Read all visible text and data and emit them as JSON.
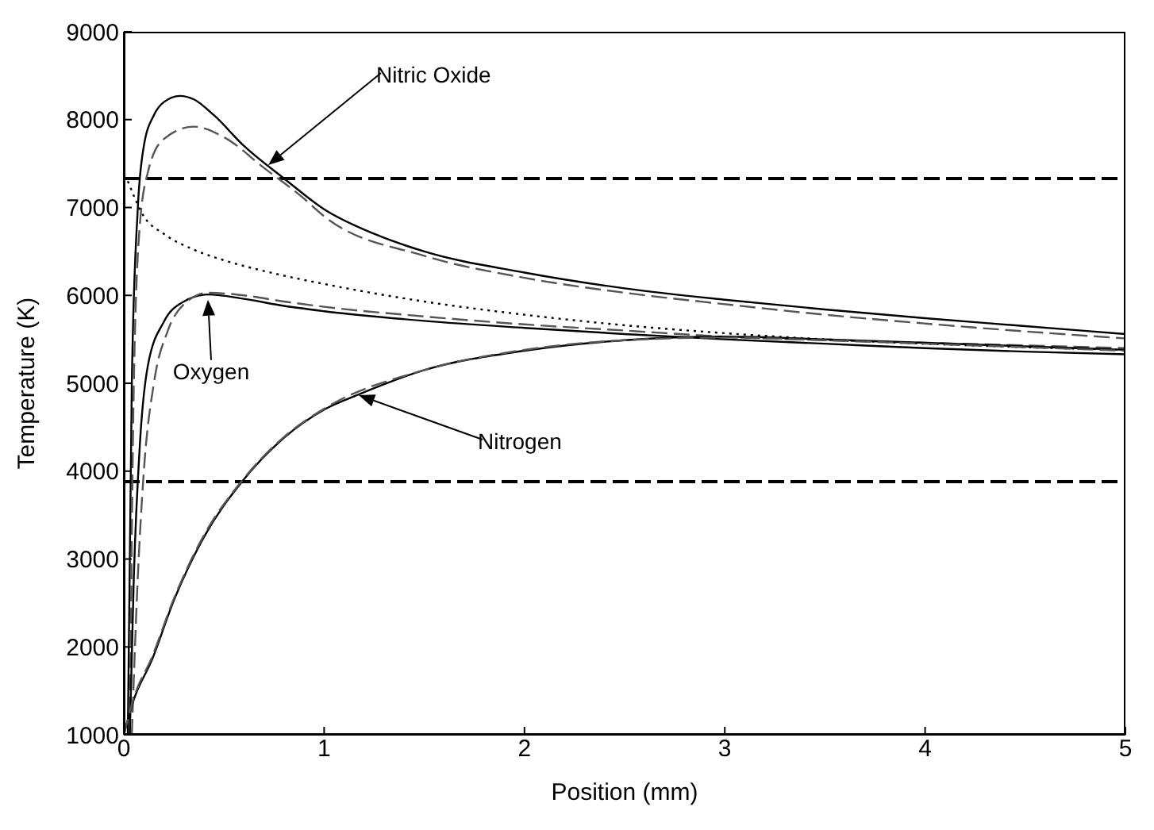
{
  "chart_data": {
    "type": "line",
    "xlabel": "Position (mm)",
    "ylabel": "Temperature (K)",
    "xlim": [
      0,
      5
    ],
    "xticks": [
      0,
      1,
      2,
      3,
      4,
      5
    ],
    "ylim": [
      1000,
      9000
    ],
    "yticks": [
      1000,
      2000,
      3000,
      4000,
      5000,
      6000,
      7000,
      8000,
      9000
    ],
    "grid": false,
    "legend": false,
    "marker": "none",
    "series": [
      {
        "color": "#000000",
        "line_style": "solid",
        "x": [
          0.02,
          0.04,
          0.07,
          0.1,
          0.15,
          0.2,
          0.28,
          0.35,
          0.45,
          0.6,
          0.8,
          1.0,
          1.25,
          1.5,
          2.0,
          2.5,
          3.0,
          3.5,
          4.0,
          4.5,
          5.0
        ],
        "values": [
          1000,
          5000,
          7000,
          7700,
          8050,
          8200,
          8270,
          8230,
          8050,
          7700,
          7330,
          6980,
          6700,
          6500,
          6260,
          6080,
          5950,
          5840,
          5740,
          5650,
          5560
        ]
      },
      {
        "color": "#555555",
        "line_style": "dashed",
        "x": [
          0.03,
          0.05,
          0.08,
          0.12,
          0.2,
          0.35,
          0.5,
          0.7,
          0.9,
          1.0,
          1.5,
          2.0,
          2.5,
          3.0,
          3.5,
          4.0,
          4.5,
          5.0
        ],
        "values": [
          1000,
          5000,
          6800,
          7400,
          7780,
          7920,
          7800,
          7450,
          7100,
          6900,
          6450,
          6200,
          6030,
          5900,
          5780,
          5680,
          5590,
          5510
        ]
      },
      {
        "color": "#000000",
        "line_style": "dotted",
        "x": [
          0.02,
          0.1,
          0.2,
          0.35,
          0.5,
          0.75,
          1.0,
          1.5,
          2.0,
          2.5,
          3.0,
          3.5,
          4.0,
          4.5,
          5.0
        ],
        "values": [
          7300,
          6900,
          6700,
          6520,
          6400,
          6250,
          6130,
          5930,
          5780,
          5660,
          5570,
          5500,
          5450,
          5410,
          5380
        ]
      },
      {
        "color": "#000000",
        "line_style": "solid",
        "x": [
          0.03,
          0.05,
          0.08,
          0.12,
          0.2,
          0.3,
          0.42,
          0.6,
          0.8,
          1.0,
          1.5,
          2.0,
          2.5,
          3.0,
          3.5,
          4.0,
          4.5,
          5.0
        ],
        "values": [
          1000,
          2800,
          4300,
          5200,
          5700,
          5930,
          6010,
          5960,
          5880,
          5820,
          5710,
          5630,
          5560,
          5500,
          5450,
          5400,
          5360,
          5330
        ]
      },
      {
        "color": "#555555",
        "line_style": "dashed",
        "x": [
          0.04,
          0.07,
          0.1,
          0.15,
          0.22,
          0.3,
          0.42,
          0.6,
          0.8,
          1.0,
          1.5,
          2.0,
          2.5,
          3.0,
          3.5,
          4.0,
          4.5,
          5.0
        ],
        "values": [
          1000,
          2800,
          4000,
          5000,
          5600,
          5900,
          6030,
          6000,
          5930,
          5870,
          5760,
          5670,
          5600,
          5530,
          5490,
          5460,
          5430,
          5400
        ]
      },
      {
        "color": "#000000",
        "line_style": "solid",
        "x": [
          0.0,
          0.05,
          0.14,
          0.25,
          0.4,
          0.59,
          0.8,
          1.0,
          1.17,
          1.5,
          2.0,
          2.5,
          3.0,
          3.5,
          4.0,
          4.5,
          5.0
        ],
        "values": [
          1000,
          1400,
          1850,
          2530,
          3250,
          3880,
          4380,
          4700,
          4870,
          5150,
          5370,
          5490,
          5530,
          5500,
          5460,
          5420,
          5380
        ]
      },
      {
        "color": "#555555",
        "line_style": "dashed",
        "x": [
          0.0,
          0.05,
          0.14,
          0.25,
          0.4,
          0.59,
          0.8,
          1.0,
          1.5,
          2.0,
          2.5,
          3.0,
          3.5,
          4.0,
          4.5,
          5.0
        ],
        "values": [
          1000,
          1420,
          1880,
          2550,
          3270,
          3890,
          4390,
          4710,
          5150,
          5380,
          5490,
          5520,
          5490,
          5450,
          5410,
          5370
        ]
      }
    ],
    "ref_lines": [
      {
        "axis": "y",
        "value": 7330,
        "color": "#000000",
        "line_style": "dashed"
      },
      {
        "axis": "y",
        "value": 3880,
        "color": "#000000",
        "line_style": "dashed"
      }
    ],
    "annotations": [
      "Nitric Oxide",
      {
        "text": "Oxygen",
        "x": 0.42,
        "y": 5950
      },
      "Nitrogen"
    ]
  }
}
